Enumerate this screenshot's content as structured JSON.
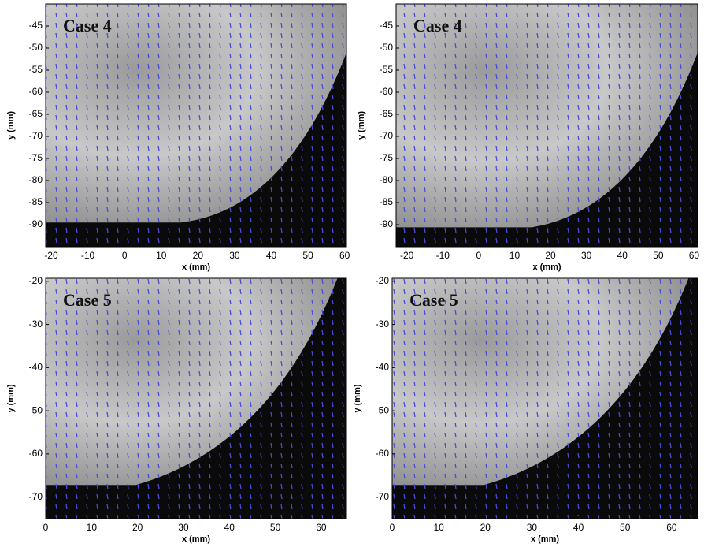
{
  "chart_data": [
    {
      "type": "image",
      "annotation": "Case 4",
      "xlabel": "x (mm)",
      "ylabel": "y (mm)",
      "xlim": [
        -21.5,
        60.5
      ],
      "ylim": [
        -95,
        -40
      ],
      "xticks": [
        -20,
        -10,
        0,
        10,
        20,
        30,
        40,
        50,
        60
      ],
      "yticks": [
        -45,
        -50,
        -55,
        -60,
        -65,
        -70,
        -75,
        -80,
        -85,
        -90
      ]
    },
    {
      "type": "image",
      "annotation": "Case 4",
      "xlabel": "x (mm)",
      "ylabel": "y (mm)",
      "xlim": [
        -23,
        61
      ],
      "ylim": [
        -95,
        -40
      ],
      "xticks": [
        -20,
        -10,
        0,
        10,
        20,
        30,
        40,
        50,
        60
      ],
      "yticks": [
        -45,
        -50,
        -55,
        -60,
        -65,
        -70,
        -75,
        -80,
        -85,
        -90
      ]
    },
    {
      "type": "image",
      "annotation": "Case 5",
      "xlabel": "x (mm)",
      "ylabel": "y (mm)",
      "xlim": [
        0,
        65.5
      ],
      "ylim": [
        -75,
        -19.3
      ],
      "xticks": [
        0,
        10,
        20,
        30,
        40,
        50,
        60
      ],
      "yticks": [
        -20,
        -30,
        -40,
        -50,
        -60,
        -70
      ]
    },
    {
      "type": "image",
      "annotation": "Case 5",
      "xlabel": "x (mm)",
      "ylabel": "y (mm)",
      "xlim": [
        0,
        65.6
      ],
      "ylim": [
        -75,
        -19.3
      ],
      "xticks": [
        0,
        10,
        20,
        30,
        40,
        50,
        60
      ],
      "yticks": [
        -20,
        -30,
        -40,
        -50,
        -60,
        -70
      ]
    }
  ]
}
